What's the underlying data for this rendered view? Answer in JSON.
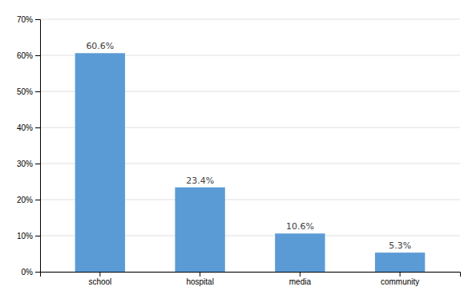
{
  "chart_data": {
    "type": "bar",
    "categories": [
      "school",
      "hospital",
      "media",
      "community"
    ],
    "values": [
      60.6,
      23.4,
      10.6,
      5.3
    ],
    "value_labels": [
      "60.6%",
      "23.4%",
      "10.6%",
      "5.3%"
    ],
    "data_labels": true,
    "color": "#5b9bd5",
    "ylim": [
      0,
      70
    ],
    "yticks": [
      {
        "value": 0,
        "label": "0%"
      },
      {
        "value": 10,
        "label": "10%"
      },
      {
        "value": 20,
        "label": "20%"
      },
      {
        "value": 30,
        "label": "30%"
      },
      {
        "value": 40,
        "label": "40%"
      },
      {
        "value": 50,
        "label": "50%"
      },
      {
        "value": 60,
        "label": "60%"
      },
      {
        "value": 70,
        "label": "70%"
      }
    ],
    "grid": true
  }
}
